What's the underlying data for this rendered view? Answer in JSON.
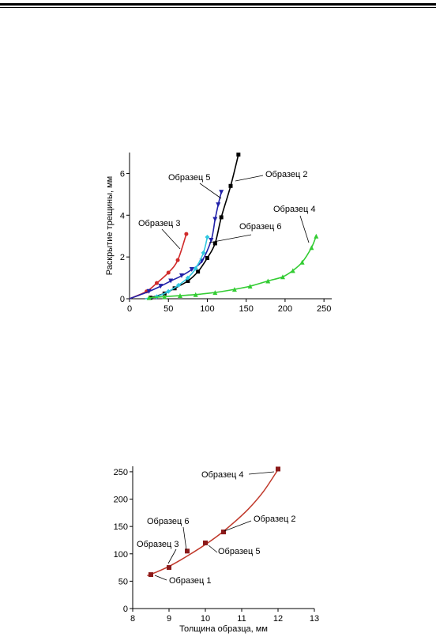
{
  "chart_data": [
    {
      "type": "line",
      "xlabel": "",
      "ylabel": "Раскрытие трещины, мм",
      "xlim": [
        0,
        260
      ],
      "ylim": [
        0,
        7
      ],
      "xticks": [
        0,
        50,
        100,
        150,
        200,
        250
      ],
      "yticks": [
        0,
        2,
        4,
        6
      ],
      "series": [
        {
          "name": "Образец 3",
          "color": "#d02a2a",
          "marker": "circle",
          "x": [
            0,
            22,
            35,
            50,
            62,
            73
          ],
          "y": [
            0,
            0.35,
            0.75,
            1.25,
            1.85,
            3.1
          ]
        },
        {
          "name": "Образец 5",
          "color": "#2020a8",
          "marker": "triangle-down",
          "x": [
            0,
            25,
            40,
            53,
            67,
            80,
            93,
            105,
            110,
            114,
            118
          ],
          "y": [
            0,
            0.35,
            0.6,
            0.85,
            1.1,
            1.4,
            1.8,
            2.8,
            3.8,
            4.5,
            5.1
          ]
        },
        {
          "name": "Образец 2",
          "color": "#000000",
          "marker": "square",
          "x": [
            27,
            45,
            58,
            75,
            88,
            100,
            110,
            118,
            130,
            140
          ],
          "y": [
            0.05,
            0.25,
            0.5,
            0.85,
            1.3,
            1.95,
            2.65,
            3.9,
            5.4,
            6.9
          ]
        },
        {
          "name": "Образец 6",
          "color": "#30c8e0",
          "marker": "diamond",
          "x": [
            20,
            35,
            50,
            63,
            75,
            85,
            95,
            100
          ],
          "y": [
            0,
            0.1,
            0.35,
            0.65,
            1.0,
            1.45,
            2.2,
            2.95
          ]
        },
        {
          "name": "Образец 4",
          "color": "#33cc33",
          "marker": "triangle-up",
          "x": [
            25,
            45,
            65,
            85,
            110,
            135,
            155,
            178,
            197,
            210,
            222,
            234,
            240
          ],
          "y": [
            0.05,
            0.1,
            0.15,
            0.2,
            0.3,
            0.45,
            0.6,
            0.85,
            1.05,
            1.35,
            1.75,
            2.45,
            3.0
          ]
        }
      ],
      "annotations": [
        {
          "text": "Образец 5"
        },
        {
          "text": "Образец 2"
        },
        {
          "text": "Образец 4"
        },
        {
          "text": "Образец 3"
        },
        {
          "text": "Образец 6"
        }
      ]
    },
    {
      "type": "scatter",
      "xlabel": "Толщина образца, мм",
      "ylabel": "",
      "xlim": [
        8,
        13
      ],
      "ylim": [
        0,
        260
      ],
      "xticks": [
        8,
        9,
        10,
        11,
        12,
        13
      ],
      "yticks": [
        0,
        50,
        100,
        150,
        200,
        250
      ],
      "line_color": "#c0392b",
      "marker_color": "#8b1a1a",
      "points": [
        {
          "label": "Образец 1",
          "x": 8.5,
          "y": 62
        },
        {
          "label": "Образец 3",
          "x": 9.0,
          "y": 75
        },
        {
          "label": "Образец 6",
          "x": 9.5,
          "y": 105
        },
        {
          "label": "Образец 5",
          "x": 10.0,
          "y": 120
        },
        {
          "label": "Образец 2",
          "x": 10.5,
          "y": 140
        },
        {
          "label": "Образец 4",
          "x": 12.0,
          "y": 255
        }
      ],
      "fit_x": [
        8.4,
        8.7,
        9.0,
        9.3,
        9.6,
        10.0,
        10.4,
        10.8,
        11.2,
        11.6,
        12.0
      ],
      "fit_y": [
        60,
        68,
        77,
        88,
        100,
        117,
        136,
        158,
        183,
        214,
        254
      ]
    }
  ]
}
